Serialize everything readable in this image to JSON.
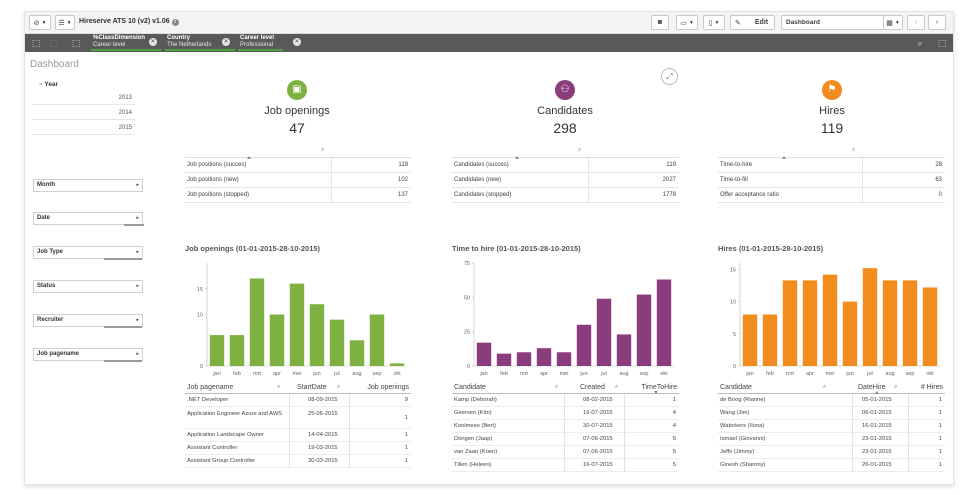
{
  "toolbar": {
    "app_title": "Hireserve ATS 10 (v2) v1.06",
    "edit_label": "Edit",
    "sheet_name": "Dashboard"
  },
  "selections": [
    {
      "field": "%ClassDimension",
      "value": "Career level"
    },
    {
      "field": "Country",
      "value": "The Netherlands"
    },
    {
      "field": "Career level",
      "value": "Professional"
    }
  ],
  "left": {
    "title": "Dashboard",
    "year_label": "Year",
    "years": [
      "2013",
      "2014",
      "2015"
    ],
    "filters": [
      "Month",
      "Date",
      "Job Type",
      "Status",
      "Recruiter",
      "Job pagename"
    ]
  },
  "kpis": [
    {
      "title": "Job openings",
      "value": "47",
      "color": "#7eb142",
      "icon": "briefcase-icon",
      "rows": [
        {
          "label": "Job positions (succes)",
          "value": "119"
        },
        {
          "label": "Job positions (new)",
          "value": "102"
        },
        {
          "label": "Job positions (stopped)",
          "value": "137"
        }
      ]
    },
    {
      "title": "Candidates",
      "value": "298",
      "color": "#8b3c7d",
      "icon": "people-icon",
      "rows": [
        {
          "label": "Candidates (succes)",
          "value": "119"
        },
        {
          "label": "Candidates (new)",
          "value": "2027"
        },
        {
          "label": "Candidates (stopped)",
          "value": "1778"
        }
      ]
    },
    {
      "title": "Hires",
      "value": "119",
      "color": "#f28c1f",
      "icon": "flag-icon",
      "rows": [
        {
          "label": "Time-to-hire",
          "value": "28"
        },
        {
          "label": "Time-to-fill",
          "value": "63"
        },
        {
          "label": "Offer acceptance ratio",
          "value": "0"
        }
      ]
    }
  ],
  "chart_data": [
    {
      "type": "bar",
      "title": "Job openings (01-01-2015-28-10-2015)",
      "categories": [
        "jan",
        "feb",
        "mrt",
        "apr",
        "mei",
        "jun",
        "jul",
        "aug",
        "sep",
        "okt"
      ],
      "values": [
        6,
        6,
        17,
        10,
        16,
        12,
        9,
        5,
        10,
        0.5
      ],
      "ylim": [
        0,
        20
      ],
      "yticks": [
        "0",
        "10",
        "15"
      ],
      "ytick_values": [
        0,
        10,
        15
      ],
      "color": "#7eb142"
    },
    {
      "type": "bar",
      "title": "Time to hire (01-01-2015-28-10-2015)",
      "categories": [
        "jan",
        "feb",
        "mrt",
        "apr",
        "mei",
        "jun",
        "jul",
        "aug",
        "sep",
        "okt"
      ],
      "values": [
        17,
        9,
        10,
        13,
        10,
        30,
        49,
        23,
        52,
        63
      ],
      "ylim": [
        0,
        75
      ],
      "yticks": [
        "0",
        "25",
        "50",
        "75"
      ],
      "ytick_values": [
        0,
        25,
        50,
        75
      ],
      "color": "#8b3c7d"
    },
    {
      "type": "bar",
      "title": "Hires (01-01-2015-28-10-2015)",
      "categories": [
        "jan",
        "feb",
        "mrt",
        "apr",
        "mei",
        "jun",
        "jul",
        "aug",
        "sep",
        "okt"
      ],
      "values": [
        8,
        8,
        13.3,
        13.3,
        14.2,
        10,
        15.2,
        13.3,
        13.3,
        12.2
      ],
      "ylim": [
        0,
        16
      ],
      "yticks": [
        "0",
        "5",
        "10",
        "15"
      ],
      "ytick_values": [
        0,
        5,
        10,
        15
      ],
      "color": "#f28c1f"
    }
  ],
  "tables": [
    {
      "headers": [
        "Job pagename",
        "StartDate",
        "Job openings"
      ],
      "rows": [
        [
          ".NET Developer",
          "08-09-2015",
          "9"
        ],
        [
          "Application Engineer Azure and AWS",
          "25-06-2015",
          "1"
        ],
        [
          "Application Landscape Owner",
          "14-04-2015",
          "1"
        ],
        [
          "Assistant Controller",
          "19-03-2015",
          "1"
        ],
        [
          "Assistant Group Controller",
          "30-03-2015",
          "1"
        ]
      ]
    },
    {
      "headers": [
        "Candidate",
        "Created",
        "TimeToHire"
      ],
      "rows": [
        [
          "Kamp (Deborah)",
          "08-02-2015",
          "1"
        ],
        [
          "Geersen (Kim)",
          "16-07-2015",
          "4"
        ],
        [
          "Koolmees (Bert)",
          "30-07-2015",
          "4"
        ],
        [
          "Dongen (Jaap)",
          "07-06-2015",
          "5"
        ],
        [
          "van Zaan (Koen)",
          "07-06-2015",
          "5"
        ],
        [
          "Tillen (Heleen)",
          "16-07-2015",
          "5"
        ]
      ]
    },
    {
      "headers": [
        "Candidate",
        "DateHire",
        "# Hires"
      ],
      "rows": [
        [
          "de Boog (Rianne)",
          "05-01-2015",
          "1"
        ],
        [
          "Wang (Jim)",
          "06-01-2015",
          "1"
        ],
        [
          "Waterkers (Ilona)",
          "16-01-2015",
          "1"
        ],
        [
          "Ismael (Giovanni)",
          "23-01-2015",
          "1"
        ],
        [
          "Jeffs (Jimmy)",
          "23-01-2015",
          "1"
        ],
        [
          "Ginesh (Sharony)",
          "26-01-2015",
          "1"
        ]
      ]
    }
  ]
}
